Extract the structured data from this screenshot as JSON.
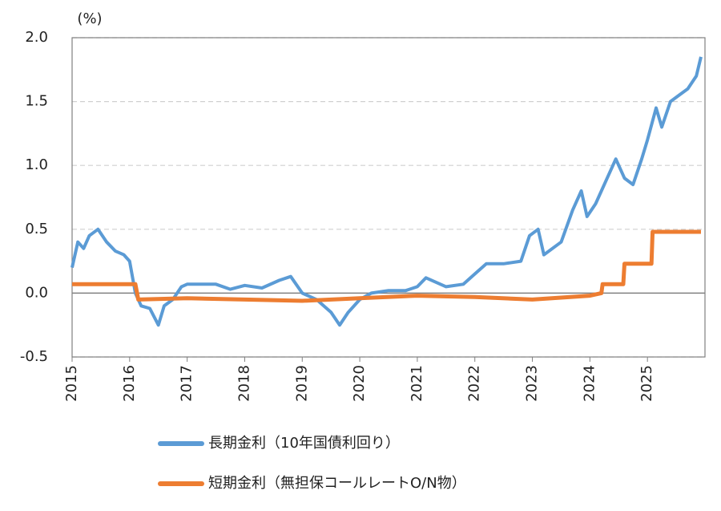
{
  "chart_data": {
    "type": "line",
    "ylabel": "(%)",
    "xlim": [
      2015,
      2026
    ],
    "xticks": [
      2015,
      2016,
      2017,
      2018,
      2019,
      2020,
      2021,
      2022,
      2023,
      2024,
      2025
    ],
    "ylim": [
      -0.5,
      2
    ],
    "yticks": [
      {
        "value": 2,
        "label": "2.0"
      },
      1.5,
      {
        "value": 1,
        "label": "1.0"
      },
      0.5,
      {
        "value": 0,
        "label": "0.0"
      },
      -0.5
    ],
    "grid": true,
    "legend": "bottom",
    "series": [
      {
        "name": "長期金利（10年国債利回り）",
        "color": "#5b9bd5",
        "x": [
          2015.0,
          2015.1,
          2015.2,
          2015.3,
          2015.45,
          2015.6,
          2015.75,
          2015.9,
          2016.0,
          2016.1,
          2016.2,
          2016.35,
          2016.5,
          2016.6,
          2016.75,
          2016.9,
          2017.0,
          2017.2,
          2017.5,
          2017.75,
          2018.0,
          2018.3,
          2018.6,
          2018.8,
          2019.0,
          2019.25,
          2019.5,
          2019.65,
          2019.8,
          2020.0,
          2020.2,
          2020.5,
          2020.8,
          2021.0,
          2021.15,
          2021.5,
          2021.8,
          2022.0,
          2022.2,
          2022.5,
          2022.8,
          2022.95,
          2023.1,
          2023.2,
          2023.5,
          2023.7,
          2023.85,
          2023.95,
          2024.1,
          2024.3,
          2024.45,
          2024.6,
          2024.75,
          2024.9,
          2025.0,
          2025.15,
          2025.25,
          2025.4,
          2025.55,
          2025.7,
          2025.85,
          2025.93
        ],
        "values": [
          0.2,
          0.4,
          0.35,
          0.45,
          0.5,
          0.4,
          0.33,
          0.3,
          0.25,
          0.0,
          -0.1,
          -0.12,
          -0.25,
          -0.1,
          -0.05,
          0.05,
          0.07,
          0.07,
          0.07,
          0.03,
          0.06,
          0.04,
          0.1,
          0.13,
          0.0,
          -0.05,
          -0.15,
          -0.25,
          -0.15,
          -0.05,
          0.0,
          0.02,
          0.02,
          0.05,
          0.12,
          0.05,
          0.07,
          0.15,
          0.23,
          0.23,
          0.25,
          0.45,
          0.5,
          0.3,
          0.4,
          0.65,
          0.8,
          0.6,
          0.7,
          0.9,
          1.05,
          0.9,
          0.85,
          1.05,
          1.2,
          1.45,
          1.3,
          1.5,
          1.55,
          1.6,
          1.7,
          1.85
        ]
      },
      {
        "name": "短期金利（無担保コールレートO/N物）",
        "color": "#ed7d31",
        "x": [
          2015.0,
          2016.1,
          2016.15,
          2017.0,
          2018.0,
          2019.0,
          2020.0,
          2021.0,
          2022.0,
          2023.0,
          2024.0,
          2024.2,
          2024.22,
          2024.58,
          2024.6,
          2025.07,
          2025.09,
          2025.93
        ],
        "values": [
          0.07,
          0.07,
          -0.05,
          -0.04,
          -0.05,
          -0.06,
          -0.04,
          -0.02,
          -0.03,
          -0.05,
          -0.02,
          0.0,
          0.07,
          0.07,
          0.23,
          0.23,
          0.48,
          0.48
        ]
      }
    ]
  }
}
